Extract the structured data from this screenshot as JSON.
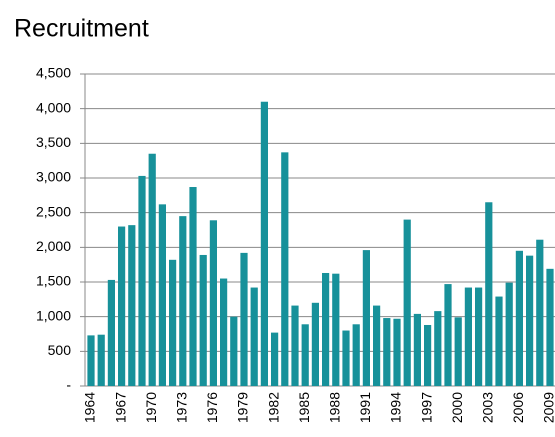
{
  "chart_data": {
    "type": "bar",
    "title": "Recruitment",
    "categories": [
      "1964",
      null,
      null,
      "1967",
      null,
      null,
      "1970",
      null,
      null,
      "1973",
      null,
      null,
      "1976",
      null,
      null,
      "1979",
      null,
      null,
      "1982",
      null,
      null,
      "1985",
      null,
      null,
      "1988",
      null,
      null,
      "1991",
      null,
      null,
      "1994",
      null,
      null,
      "1997",
      null,
      null,
      "2000",
      null,
      null,
      "2003",
      null,
      null,
      "2006",
      null,
      null,
      "2009"
    ],
    "values": [
      730,
      740,
      1530,
      2300,
      2320,
      3030,
      3350,
      2620,
      1820,
      2450,
      2870,
      1890,
      2390,
      1550,
      1000,
      1920,
      1420,
      4100,
      770,
      3370,
      1160,
      890,
      1200,
      1630,
      1620,
      800,
      890,
      1960,
      1160,
      980,
      970,
      2400,
      1040,
      880,
      1080,
      1470,
      990,
      1420,
      1420,
      2650,
      1290,
      1490,
      1950,
      1880,
      2110,
      1690
    ],
    "color": "#17919a",
    "ylim": [
      0,
      4500
    ],
    "yticks": [
      {
        "value": 0,
        "label": "-"
      },
      500,
      {
        "value": 1000,
        "label": "1,000"
      },
      {
        "value": 1500,
        "label": "1,500"
      },
      {
        "value": 2000,
        "label": "2,000"
      },
      {
        "value": 2500,
        "label": "2,500"
      },
      {
        "value": 3000,
        "label": "3,000"
      },
      {
        "value": 3500,
        "label": "3,500"
      },
      {
        "value": 4000,
        "label": "4,000"
      },
      {
        "value": 4500,
        "label": "4,500"
      }
    ],
    "grid": true
  }
}
